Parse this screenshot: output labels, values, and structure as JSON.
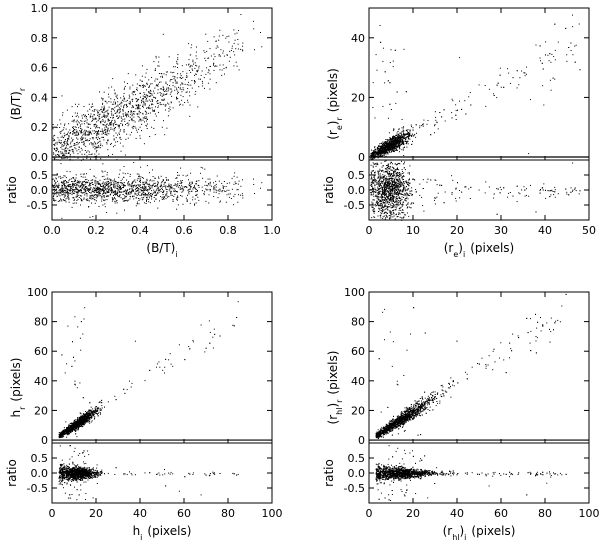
{
  "figure": {
    "background": "#ffffff",
    "point_color": "#000000"
  },
  "chart_data": [
    {
      "id": "bt",
      "type": "scatter",
      "xlabel": "(B/T)",
      "xlabel_sub": "i",
      "ylabel_top": "(B/T)",
      "ylabel_top_sub": "r",
      "ylabel_bottom": "ratio",
      "xlim": [
        0,
        1.0
      ],
      "ylim_top": [
        -0.02,
        1.0
      ],
      "ylim_bottom": [
        -1.0,
        1.0
      ],
      "x_ticks": [
        "0.0",
        "0.2",
        "0.4",
        "0.6",
        "0.8",
        "1.0"
      ],
      "x_tick_values": [
        0,
        0.2,
        0.4,
        0.6,
        0.8,
        1.0
      ],
      "y_ticks_top": [
        "0.0",
        "0.2",
        "0.4",
        "0.6",
        "0.8",
        "1.0"
      ],
      "y_tick_values_top": [
        0,
        0.2,
        0.4,
        0.6,
        0.8,
        1.0
      ],
      "y_ticks_bottom": [
        "0.5",
        "0.0",
        "-0.5"
      ],
      "y_tick_values_bottom": [
        0.5,
        0.0,
        -0.5
      ],
      "zero_line": true,
      "distribution": {
        "n": 1400,
        "x_center": 0.5,
        "x_spread": 0.24,
        "x_range": [
          0.0,
          0.98
        ],
        "slope": 0.85,
        "intercept": 0.02,
        "scatter_top": 0.1,
        "ratio_center": 0.05,
        "ratio_spread": 0.22,
        "ratio_outliers": 0.03
      }
    },
    {
      "id": "re",
      "type": "scatter",
      "xlabel": "(r",
      "xlabel_sub": "e",
      "xlabel_tail": ")",
      "xlabel_tail_sub": "i",
      "xlabel_unit": "(pixels)",
      "ylabel_top": "(r",
      "ylabel_top_sub": "e",
      "ylabel_top_tail": ")",
      "ylabel_top_tail_sub": "r",
      "ylabel_top_unit": "(pixels)",
      "ylabel_bottom": "ratio",
      "xlim": [
        0,
        50
      ],
      "ylim_top": [
        -1,
        50
      ],
      "ylim_bottom": [
        -1.0,
        1.0
      ],
      "x_ticks": [
        "0",
        "10",
        "20",
        "30",
        "40",
        "50"
      ],
      "x_tick_values": [
        0,
        10,
        20,
        30,
        40,
        50
      ],
      "y_ticks_top": [
        "0",
        "20",
        "40"
      ],
      "y_tick_values_top": [
        0,
        20,
        40
      ],
      "y_ticks_bottom": [
        "0.5",
        "0.0",
        "-0.5"
      ],
      "y_tick_values_bottom": [
        0.5,
        0.0,
        -0.5
      ],
      "zero_line": true,
      "distribution": {
        "n": 1500,
        "x_center": 4.5,
        "x_spread": 2.2,
        "x_range": [
          0.3,
          48
        ],
        "slope": 0.8,
        "intercept": 0.3,
        "scatter_top": 1.8,
        "tail_fraction": 0.12,
        "tail_max": 48,
        "ratio_center": 0.0,
        "ratio_spread": 0.35,
        "ratio_outliers": 0.08
      }
    },
    {
      "id": "h",
      "type": "scatter",
      "xlabel": "h",
      "xlabel_sub": "i",
      "xlabel_unit": "(pixels)",
      "ylabel_top": "h",
      "ylabel_top_sub": "r",
      "ylabel_top_unit": "(pixels)",
      "ylabel_bottom": "ratio",
      "xlim": [
        0,
        100
      ],
      "ylim_top": [
        -2,
        100
      ],
      "ylim_bottom": [
        -1.0,
        1.0
      ],
      "x_ticks": [
        "0",
        "20",
        "40",
        "60",
        "80",
        "100"
      ],
      "x_tick_values": [
        0,
        20,
        40,
        60,
        80,
        100
      ],
      "y_ticks_top": [
        "0",
        "20",
        "40",
        "60",
        "80",
        "100"
      ],
      "y_tick_values_top": [
        0,
        20,
        40,
        60,
        80,
        100
      ],
      "y_ticks_bottom": [
        "0.5",
        "0.0",
        "-0.5"
      ],
      "y_tick_values_bottom": [
        0.5,
        0.0,
        -0.5
      ],
      "zero_line": true,
      "distribution": {
        "n": 1600,
        "x_center": 11,
        "x_spread": 4.5,
        "x_range": [
          3,
          45
        ],
        "slope": 1.0,
        "intercept": 0.0,
        "scatter_top": 1.6,
        "tail_fraction": 0.06,
        "tail_max": 85,
        "ratio_center": 0.0,
        "ratio_spread": 0.1,
        "ratio_outliers": 0.04
      }
    },
    {
      "id": "rhl",
      "type": "scatter",
      "xlabel": "(r",
      "xlabel_sub": "hl",
      "xlabel_tail": ")",
      "xlabel_tail_sub": "i",
      "xlabel_unit": "(pixels)",
      "ylabel_top": "(r",
      "ylabel_top_sub": "hl",
      "ylabel_top_tail": ")",
      "ylabel_top_tail_sub": "r",
      "ylabel_top_unit": "(pixels)",
      "ylabel_bottom": "ratio",
      "xlim": [
        0,
        100
      ],
      "ylim_top": [
        -2,
        100
      ],
      "ylim_bottom": [
        -1.0,
        1.0
      ],
      "x_ticks": [
        "0",
        "20",
        "40",
        "60",
        "80",
        "100"
      ],
      "x_tick_values": [
        0,
        20,
        40,
        60,
        80,
        100
      ],
      "y_ticks_top": [
        "0",
        "20",
        "40",
        "60",
        "80",
        "100"
      ],
      "y_tick_values_top": [
        0,
        20,
        40,
        60,
        80,
        100
      ],
      "y_ticks_bottom": [
        "0.5",
        "0.0",
        "-0.5"
      ],
      "y_tick_values_bottom": [
        0.5,
        0.0,
        -0.5
      ],
      "zero_line": true,
      "distribution": {
        "n": 1700,
        "x_center": 14,
        "x_spread": 7.5,
        "x_range": [
          3,
          60
        ],
        "slope": 0.98,
        "intercept": 0.0,
        "scatter_top": 1.8,
        "tail_fraction": 0.08,
        "tail_max": 90,
        "ratio_center": 0.0,
        "ratio_spread": 0.1,
        "ratio_outliers": 0.04
      }
    }
  ]
}
